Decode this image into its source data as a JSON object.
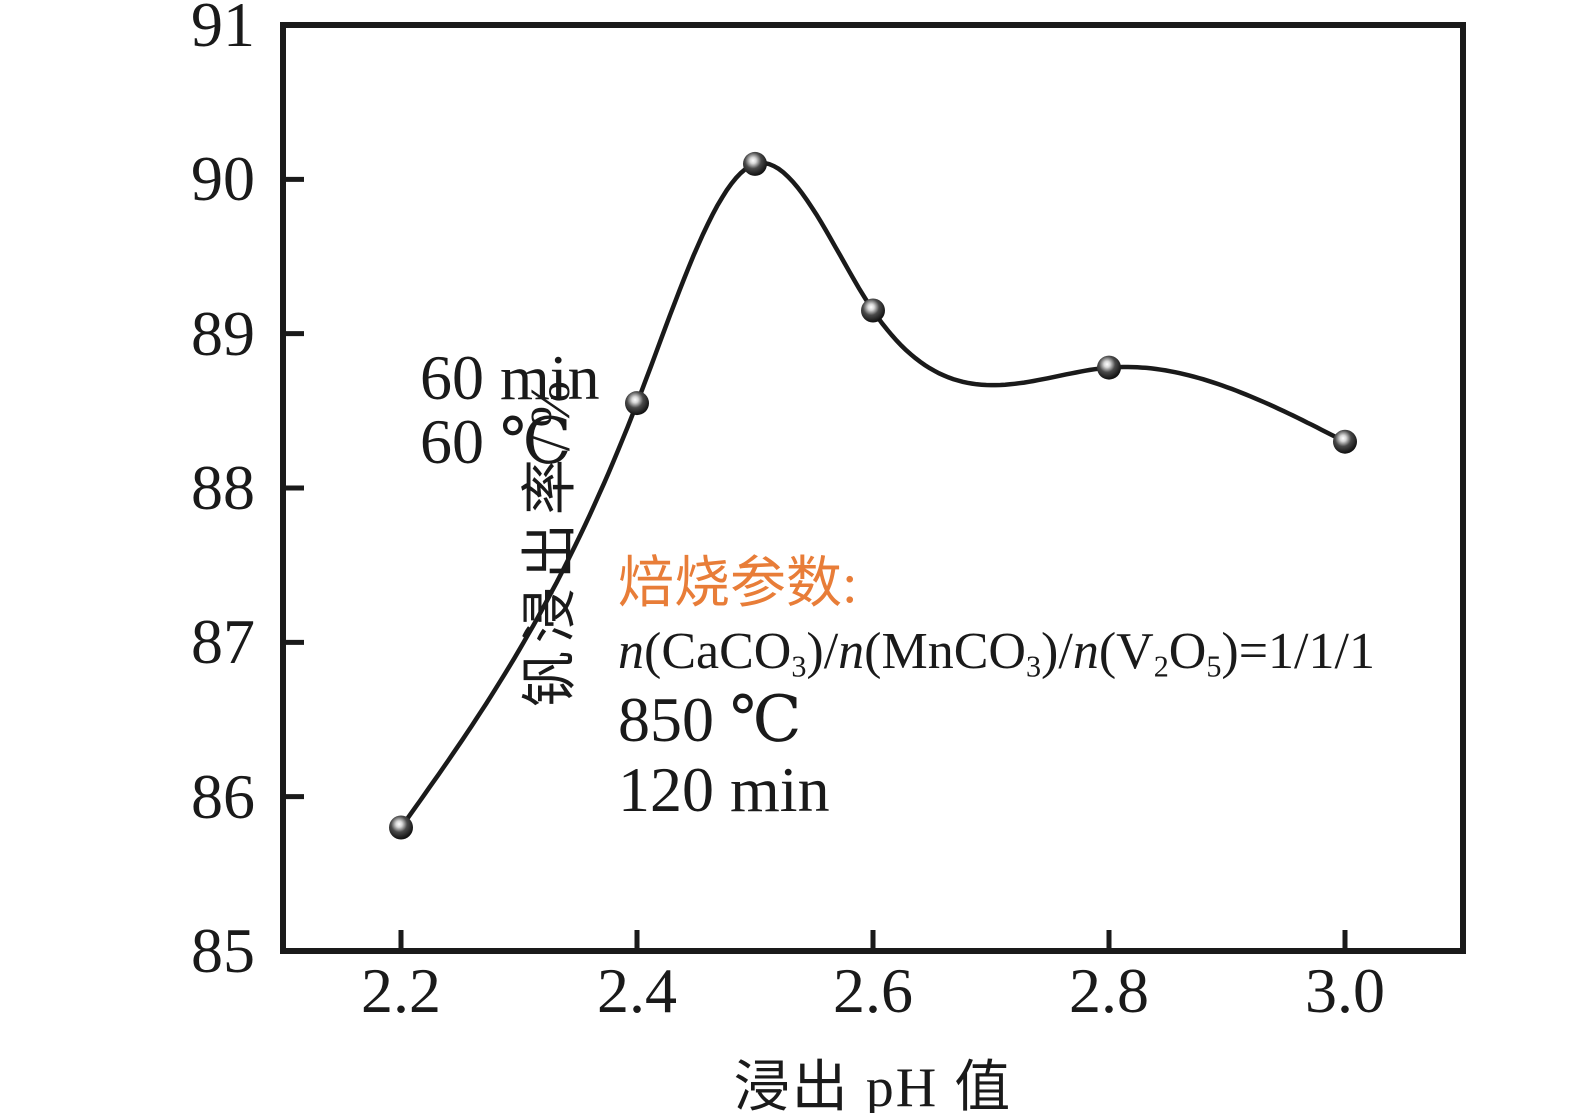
{
  "chart_data": {
    "type": "line",
    "title": "",
    "xlabel": "浸出 pH 值",
    "ylabel": "钒浸出率/%",
    "x": [
      2.2,
      2.4,
      2.5,
      2.6,
      2.8,
      3.0
    ],
    "y": [
      85.8,
      88.55,
      90.1,
      89.15,
      88.78,
      88.3
    ],
    "series": [
      {
        "name": "钒浸出率",
        "x": [
          2.2,
          2.4,
          2.5,
          2.6,
          2.8,
          3.0
        ],
        "values": [
          85.8,
          88.55,
          90.1,
          89.15,
          88.78,
          88.3
        ]
      }
    ],
    "xlim": [
      2.1,
      3.1
    ],
    "ylim": [
      85,
      91
    ],
    "xticks": [
      2.2,
      2.4,
      2.6,
      2.8,
      3.0
    ],
    "yticks": [
      85,
      86,
      87,
      88,
      89,
      90,
      91
    ],
    "grid": false,
    "legend": "none",
    "curve": "natural-cubic-spline",
    "marker": "sphere",
    "line_color": "#1a1a1a"
  },
  "annotations": {
    "leach_conditions": {
      "line1": "60 min",
      "line2": "60 ℃"
    },
    "roasting": {
      "title": "焙烧参数:",
      "title_color": "#E87D38",
      "formula_plain": "n(CaCO3)/n(MnCO3)/n(V2O5)=1/1/1",
      "formula": [
        {
          "text": "n",
          "italic": true
        },
        {
          "text": "(CaCO"
        },
        {
          "text": "3",
          "sub": true
        },
        {
          "text": ")/"
        },
        {
          "text": "n",
          "italic": true
        },
        {
          "text": "(MnCO"
        },
        {
          "text": "3",
          "sub": true
        },
        {
          "text": ")/"
        },
        {
          "text": "n",
          "italic": true
        },
        {
          "text": "(V"
        },
        {
          "text": "2",
          "sub": true
        },
        {
          "text": "O"
        },
        {
          "text": "5",
          "sub": true
        },
        {
          "text": ")=1/1/1"
        }
      ],
      "temperature": "850 ℃",
      "time": "120 min"
    }
  },
  "colors": {
    "axis": "#1a1a1a",
    "curve": "#1a1a1a",
    "accent_orange": "#E87D38",
    "background": "#ffffff"
  }
}
